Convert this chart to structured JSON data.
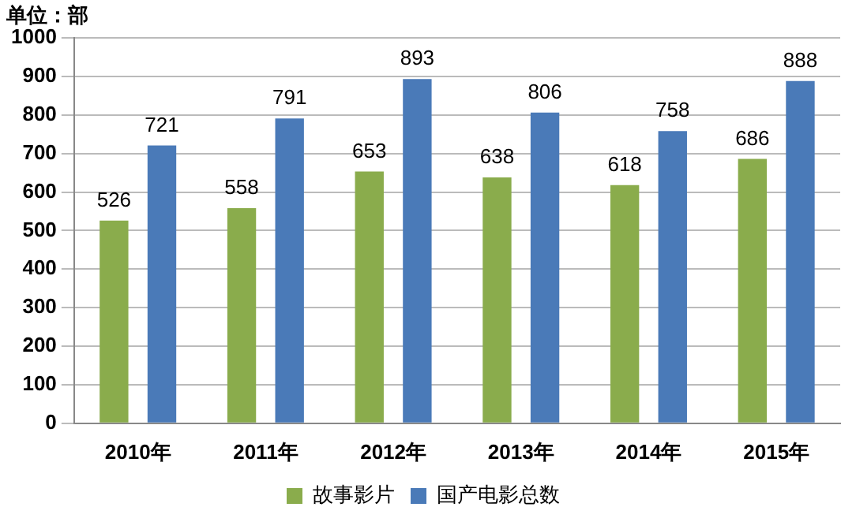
{
  "chart_data": {
    "type": "bar",
    "ylabel": "单位：部",
    "categories": [
      "2010年",
      "2011年",
      "2012年",
      "2013年",
      "2014年",
      "2015年"
    ],
    "series": [
      {
        "name": "故事影片",
        "color": "#8aac4c",
        "values": [
          526,
          558,
          653,
          638,
          618,
          686
        ]
      },
      {
        "name": "国产电影总数",
        "color": "#4a7ab8",
        "values": [
          721,
          791,
          893,
          806,
          758,
          888
        ]
      }
    ],
    "ylim": [
      0,
      1000
    ],
    "yticks": [
      0,
      100,
      200,
      300,
      400,
      500,
      600,
      700,
      800,
      900,
      1000
    ],
    "grid": "y",
    "legend": "bottom",
    "data_labels": true
  }
}
